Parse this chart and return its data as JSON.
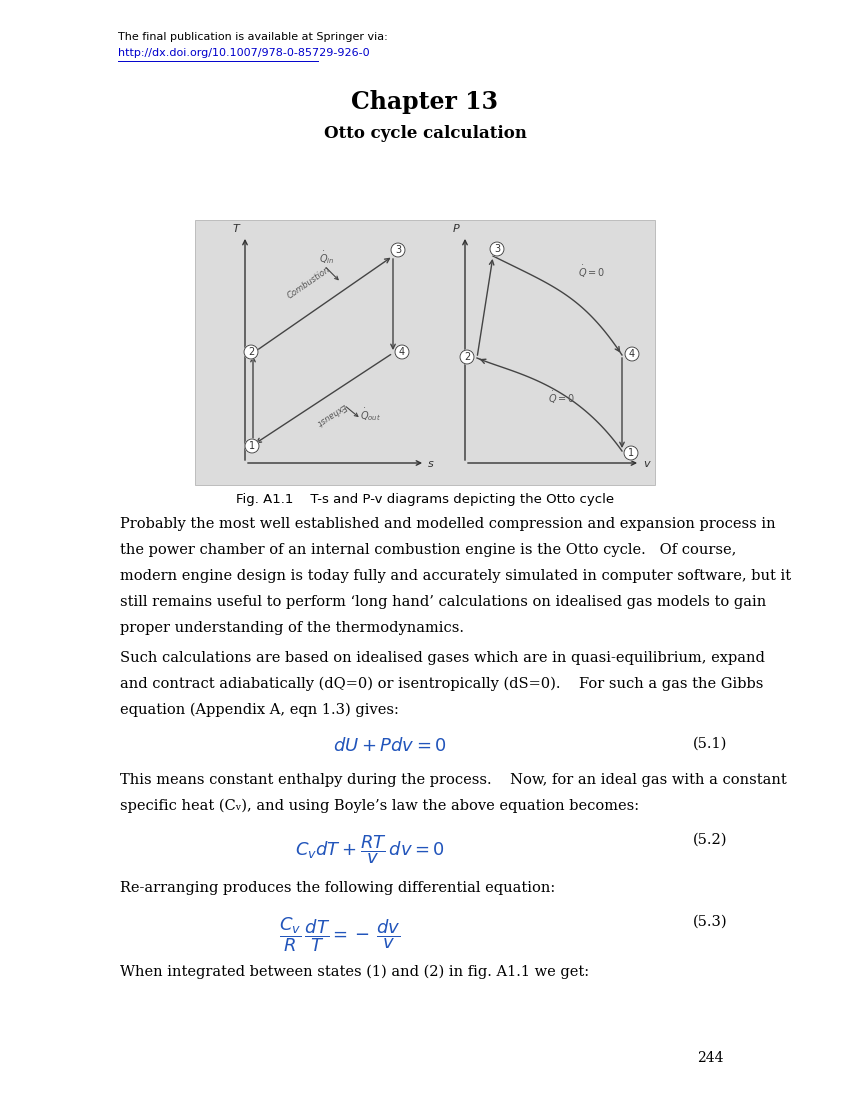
{
  "page_title": "Chapter 13",
  "page_subtitle": "Otto cycle calculation",
  "header_text": "The final publication is available at Springer via:",
  "header_link": "http://dx.doi.org/10.1007/978-0-85729-926-0",
  "fig_caption": "Fig. A1.1    T-s and P-v diagrams depicting the Otto cycle",
  "body_text_1_lines": [
    "Probably the most well established and modelled compression and expansion process in",
    "the power chamber of an internal combustion engine is the Otto cycle.   Of course,",
    "modern engine design is today fully and accurately simulated in computer software, but it",
    "still remains useful to perform ‘long hand’ calculations on idealised gas models to gain",
    "proper understanding of the thermodynamics."
  ],
  "body_text_2_lines": [
    "Such calculations are based on idealised gases which are in quasi-equilibrium, expand",
    "and contract adiabatically (dQ=0) or isentropically (dS=0).    For such a gas the Gibbs",
    "equation (Appendix A, eqn 1.3) gives:"
  ],
  "eq1_num": "(5.1)",
  "text_after_eq1_lines": [
    "This means constant enthalpy during the process.    Now, for an ideal gas with a constant",
    "specific heat (Cᵥ), and using Boyle’s law the above equation becomes:"
  ],
  "eq2_num": "(5.2)",
  "text_after_eq2": "Re-arranging produces the following differential equation:",
  "eq3_num": "(5.3)",
  "text_final": "When integrated between states (1) and (2) in fig. A1.1 we get:",
  "page_num": "244",
  "bg_color": "#ffffff",
  "fig_bg": "#dcdcdc",
  "text_color": "#000000",
  "link_color": "#0000cc",
  "diagram_line_color": "#444444"
}
